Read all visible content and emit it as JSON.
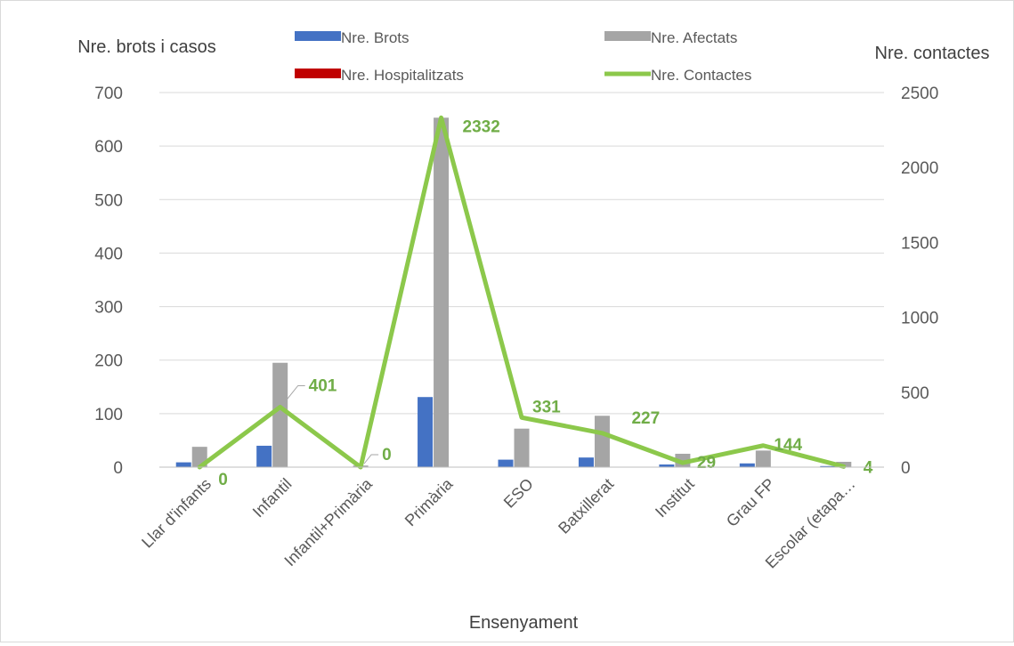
{
  "chart_data": {
    "type": "bar",
    "title": "",
    "xlabel": "Ensenyament",
    "ylabel": "Nre. brots i casos",
    "y2label": "Nre. contactes",
    "ylim": [
      0,
      700
    ],
    "y2lim": [
      0,
      2500
    ],
    "yticks": [
      0,
      100,
      200,
      300,
      400,
      500,
      600,
      700
    ],
    "y2ticks": [
      0,
      500,
      1000,
      1500,
      2000,
      2500
    ],
    "grid": true,
    "legend_position": "top",
    "categories": [
      "Llar d'infants",
      "Infantil",
      "Infantil+Primària",
      "Primària",
      "ESO",
      "Batxillerat",
      "Institut",
      "Grau FP",
      "Escolar (etapa…"
    ],
    "series": [
      {
        "name": "Nre. Brots",
        "type": "bar",
        "axis": "left",
        "color": "#4472c4",
        "values": [
          9,
          40,
          0,
          131,
          14,
          18,
          5,
          7,
          2
        ]
      },
      {
        "name": "Nre. Afectats",
        "type": "bar",
        "axis": "left",
        "color": "#a5a5a5",
        "values": [
          38,
          195,
          3,
          653,
          72,
          96,
          25,
          31,
          10
        ]
      },
      {
        "name": "Nre. Hospitalitzats",
        "type": "bar",
        "axis": "left",
        "color": "#c00000",
        "values": [
          0,
          0,
          0,
          0,
          0,
          0,
          0,
          0,
          0
        ]
      },
      {
        "name": "Nre.  Contactes",
        "type": "line",
        "axis": "right",
        "color": "#8cc84b",
        "values": [
          0,
          401,
          0,
          2332,
          331,
          227,
          29,
          144,
          4
        ]
      }
    ]
  }
}
